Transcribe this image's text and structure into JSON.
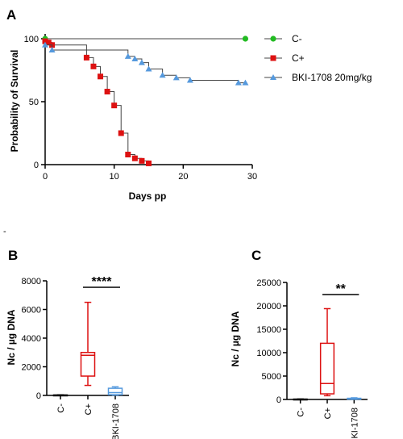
{
  "panel_labels": {
    "a": "A",
    "b": "B",
    "c": "C"
  },
  "stray_mark": "-",
  "chart_data": [
    {
      "type": "line",
      "subtype": "kaplan-meier",
      "xlabel": "Days pp",
      "ylabel": "Probability of Survival",
      "xlim": [
        0,
        30
      ],
      "ylim": [
        0,
        100
      ],
      "xticks": [
        "0",
        "10",
        "20",
        "30"
      ],
      "yticks": [
        "0",
        "50",
        "100"
      ],
      "legend_position": "right",
      "series": [
        {
          "name": "C-",
          "color": "#22bb22",
          "marker": "circle",
          "x": [
            0,
            29
          ],
          "y": [
            100,
            100
          ]
        },
        {
          "name": "C+",
          "color": "#dd1111",
          "marker": "square",
          "x": [
            0,
            0.5,
            1,
            6,
            7,
            8,
            9,
            10,
            11,
            12,
            13,
            14,
            15
          ],
          "y": [
            98,
            97,
            95,
            85,
            78,
            70,
            58,
            47,
            25,
            8,
            5,
            3,
            1
          ]
        },
        {
          "name": "BKI-1708 20mg/kg",
          "color": "#5599dd",
          "marker": "triangle",
          "x": [
            0,
            1,
            12,
            13,
            14,
            15,
            17,
            19,
            21,
            28,
            29
          ],
          "y": [
            95,
            91,
            86,
            84,
            81,
            76,
            71,
            69,
            67,
            65,
            65
          ]
        }
      ]
    },
    {
      "type": "box",
      "ylabel": "Nc / µg DNA",
      "ylim": [
        0,
        8000
      ],
      "yticks": [
        "0",
        "2000",
        "4000",
        "6000",
        "8000"
      ],
      "categories": [
        "C-",
        "C+",
        "BKI-1708"
      ],
      "colors": [
        "#000000",
        "#dd1111",
        "#5599dd"
      ],
      "boxes": [
        {
          "min": 0,
          "q1": 10,
          "median": 20,
          "q3": 30,
          "max": 40
        },
        {
          "min": 700,
          "q1": 1350,
          "median": 2800,
          "q3": 3000,
          "max": 6500
        },
        {
          "min": 20,
          "q1": 50,
          "median": 200,
          "q3": 500,
          "max": 600
        }
      ],
      "significance": {
        "label": "****",
        "from": "C+",
        "to": "BKI-1708"
      }
    },
    {
      "type": "box",
      "ylabel": "Nc / µg DNA",
      "ylim": [
        0,
        25000
      ],
      "yticks": [
        "0",
        "5000",
        "10000",
        "15000",
        "20000",
        "25000"
      ],
      "categories": [
        "C-",
        "C+",
        "BKI-1708"
      ],
      "colors": [
        "#000000",
        "#dd1111",
        "#5599dd"
      ],
      "boxes": [
        {
          "min": 0,
          "q1": 20,
          "median": 50,
          "q3": 80,
          "max": 100
        },
        {
          "min": 800,
          "q1": 1200,
          "median": 3400,
          "q3": 12000,
          "max": 19400
        },
        {
          "min": 20,
          "q1": 60,
          "median": 150,
          "q3": 250,
          "max": 350
        }
      ],
      "significance": {
        "label": "**",
        "from": "C+",
        "to": "BKI-1708"
      }
    }
  ]
}
